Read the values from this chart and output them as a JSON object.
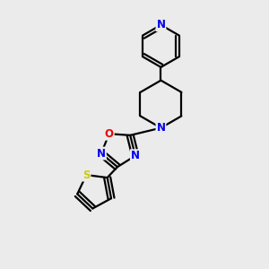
{
  "background_color": "#ebebeb",
  "bond_color": "#000000",
  "bond_width": 1.6,
  "atom_colors": {
    "N": "#0000ee",
    "O": "#ee0000",
    "S": "#cccc00",
    "C": "#000000"
  },
  "font_size": 8.5
}
